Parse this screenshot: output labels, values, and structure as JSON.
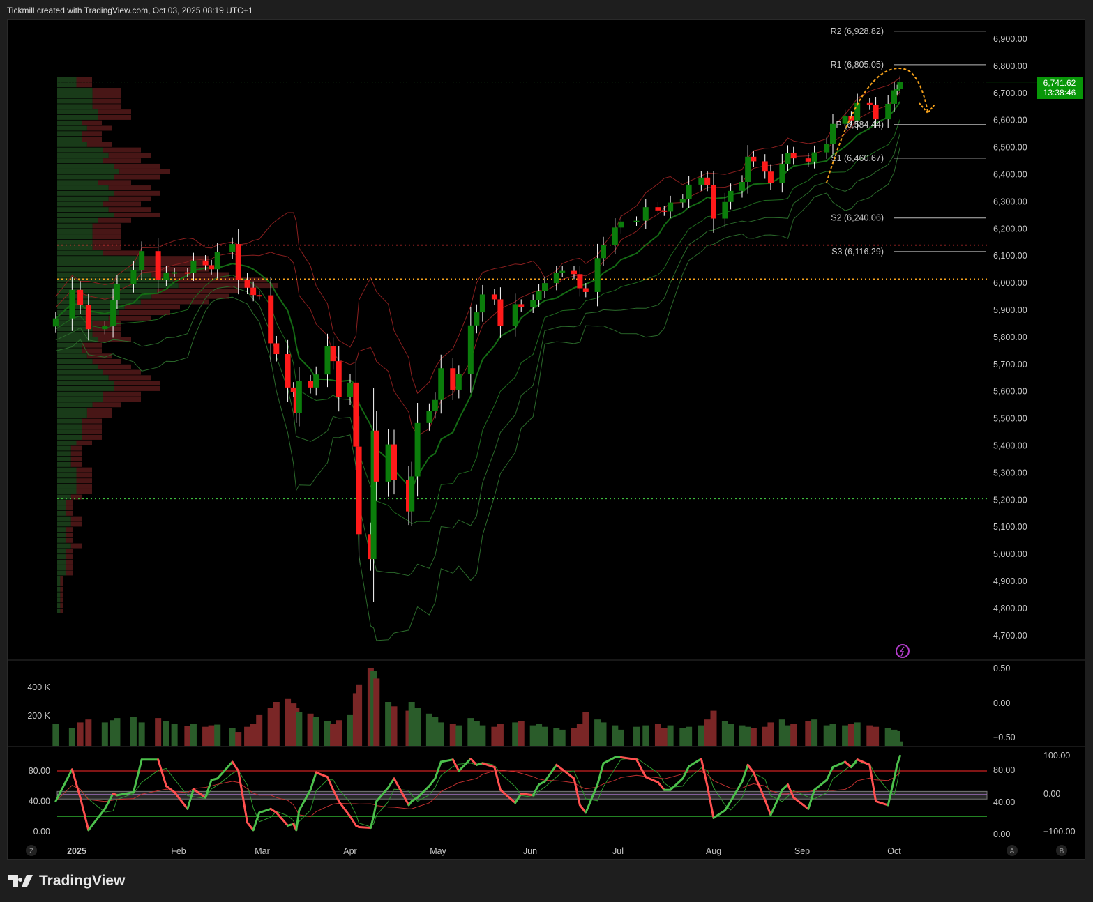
{
  "header": {
    "title": "Tickmill created with TradingView.com, Oct 03, 2025 08:19 UTC+1"
  },
  "footer": {
    "brand": "TradingView"
  },
  "price_label": {
    "value": "6,741.62",
    "countdown": "13:38:46",
    "color": "#089708"
  },
  "colors": {
    "up": "#0b7d0b",
    "down": "#ff1a1a",
    "vol_up": "#2a5c2a",
    "vol_down": "#7a2626",
    "pivot_arrow": "#f7a21b"
  },
  "buttons": {
    "z": "Z",
    "a": "A",
    "b": "B"
  },
  "chart_data": {
    "type": "candlestick",
    "price_axis": {
      "ticks": [
        "6,900.00",
        "6,800.00",
        "6,700.00",
        "6,600.00",
        "6,500.00",
        "6,400.00",
        "6,300.00",
        "6,200.00",
        "6,100.00",
        "6,000.00",
        "5,900.00",
        "5,800.00",
        "5,700.00",
        "5,600.00",
        "5,500.00",
        "5,400.00",
        "5,300.00",
        "5,200.00",
        "5,100.00",
        "5,000.00",
        "4,900.00",
        "4,800.00",
        "4,700.00"
      ],
      "range": [
        4650,
        6960
      ]
    },
    "time_axis": [
      "2025",
      "Feb",
      "Mar",
      "Apr",
      "May",
      "Jun",
      "Jul",
      "Aug",
      "Sep",
      "Oct"
    ],
    "pivots": [
      {
        "label": "R2 (6,928.82)",
        "value": 6928.82
      },
      {
        "label": "R1 (6,805.05)",
        "value": 6805.05
      },
      {
        "label": "P (6,584.44)",
        "value": 6584.44
      },
      {
        "label": "S1 (6,460.67)",
        "value": 6460.67
      },
      {
        "label": "S2 (6,240.06)",
        "value": 6240.06
      },
      {
        "label": "S3 (6,116.29)",
        "value": 6116.29
      }
    ],
    "levels": [
      {
        "value": 6140,
        "color": "#ff3b3b"
      },
      {
        "value": 6015,
        "color": "#f7a21b"
      },
      {
        "value": 5205,
        "color": "#3dbb3d"
      },
      {
        "value": 6395,
        "color": "#d050d0"
      }
    ],
    "volume_axis": {
      "left": [
        "400 K",
        "200 K"
      ],
      "right": [
        "0.50",
        "0.00",
        "−0.50"
      ]
    },
    "osc_axis": {
      "left": [
        "80.00",
        "40.00",
        "0.00"
      ],
      "right": [
        "100.00",
        "80.00",
        "0.00",
        "40.00",
        "−100.00",
        "0.00"
      ]
    },
    "points": [
      [
        "2025-01-02",
        5870,
        150,
        40
      ],
      [
        "2025-01-06",
        5975,
        120,
        82
      ],
      [
        "2025-01-08",
        5918,
        160,
        45
      ],
      [
        "2025-01-10",
        5830,
        180,
        2
      ],
      [
        "2025-01-14",
        5842,
        160,
        30
      ],
      [
        "2025-01-16",
        5937,
        175,
        50
      ],
      [
        "2025-01-17",
        5996,
        190,
        48
      ],
      [
        "2025-01-21",
        6049,
        200,
        52
      ],
      [
        "2025-01-23",
        6118,
        160,
        95
      ],
      [
        "2025-01-27",
        6012,
        190,
        95
      ],
      [
        "2025-01-29",
        6039,
        170,
        60
      ],
      [
        "2025-01-31",
        6040,
        150,
        52
      ],
      [
        "2025-02-04",
        6037,
        135,
        30
      ],
      [
        "2025-02-06",
        6083,
        150,
        56
      ],
      [
        "2025-02-10",
        6066,
        130,
        45
      ],
      [
        "2025-02-12",
        6051,
        140,
        68
      ],
      [
        "2025-02-14",
        6114,
        145,
        70
      ],
      [
        "2025-02-19",
        6144,
        120,
        92
      ],
      [
        "2025-02-21",
        6013,
        95,
        80
      ],
      [
        "2025-02-24",
        5983,
        130,
        12
      ],
      [
        "2025-02-26",
        5956,
        150,
        2
      ],
      [
        "2025-02-28",
        5955,
        210,
        25
      ],
      [
        "2025-03-04",
        5778,
        260,
        30
      ],
      [
        "2025-03-06",
        5738,
        300,
        25
      ],
      [
        "2025-03-10",
        5615,
        320,
        8
      ],
      [
        "2025-03-12",
        5599,
        290,
        10
      ],
      [
        "2025-03-13",
        5522,
        260,
        2
      ],
      [
        "2025-03-14",
        5639,
        230,
        28
      ],
      [
        "2025-03-18",
        5615,
        220,
        55
      ],
      [
        "2025-03-20",
        5663,
        200,
        78
      ],
      [
        "2025-03-24",
        5767,
        170,
        72
      ],
      [
        "2025-03-26",
        5712,
        150,
        55
      ],
      [
        "2025-03-28",
        5581,
        175,
        40
      ],
      [
        "2025-04-01",
        5633,
        210,
        20
      ],
      [
        "2025-04-03",
        5397,
        360,
        8
      ],
      [
        "2025-04-04",
        5074,
        420,
        6
      ],
      [
        "2025-04-08",
        4982,
        530,
        5
      ],
      [
        "2025-04-09",
        5456,
        510,
        20
      ],
      [
        "2025-04-10",
        5268,
        460,
        40
      ],
      [
        "2025-04-14",
        5405,
        300,
        58
      ],
      [
        "2025-04-16",
        5275,
        270,
        70
      ],
      [
        "2025-04-21",
        5158,
        240,
        35
      ],
      [
        "2025-04-22",
        5287,
        300,
        40
      ],
      [
        "2025-04-24",
        5484,
        260,
        45
      ],
      [
        "2025-04-28",
        5528,
        220,
        60
      ],
      [
        "2025-04-30",
        5569,
        200,
        70
      ],
      [
        "2025-05-02",
        5686,
        160,
        92
      ],
      [
        "2025-05-06",
        5607,
        150,
        95
      ],
      [
        "2025-05-08",
        5664,
        140,
        80
      ],
      [
        "2025-05-12",
        5844,
        190,
        96
      ],
      [
        "2025-05-14",
        5892,
        170,
        88
      ],
      [
        "2025-05-16",
        5958,
        140,
        90
      ],
      [
        "2025-05-20",
        5940,
        130,
        85
      ],
      [
        "2025-05-22",
        5842,
        150,
        55
      ],
      [
        "2025-05-27",
        5922,
        160,
        38
      ],
      [
        "2025-05-29",
        5912,
        170,
        50
      ],
      [
        "2025-06-02",
        5936,
        140,
        48
      ],
      [
        "2025-06-04",
        5970,
        150,
        62
      ],
      [
        "2025-06-06",
        6000,
        130,
        66
      ],
      [
        "2025-06-10",
        6038,
        120,
        88
      ],
      [
        "2025-06-12",
        6045,
        110,
        82
      ],
      [
        "2025-06-16",
        6033,
        120,
        70
      ],
      [
        "2025-06-18",
        5981,
        150,
        35
      ],
      [
        "2025-06-20",
        5967,
        230,
        25
      ],
      [
        "2025-06-24",
        6092,
        180,
        62
      ],
      [
        "2025-06-26",
        6141,
        160,
        90
      ],
      [
        "2025-06-30",
        6205,
        140,
        98
      ],
      [
        "2025-07-02",
        6227,
        110,
        98
      ],
      [
        "2025-07-07",
        6230,
        130,
        95
      ],
      [
        "2025-07-10",
        6280,
        140,
        72
      ],
      [
        "2025-07-14",
        6268,
        150,
        65
      ],
      [
        "2025-07-16",
        6264,
        120,
        55
      ],
      [
        "2025-07-18",
        6297,
        140,
        55
      ],
      [
        "2025-07-22",
        6309,
        120,
        70
      ],
      [
        "2025-07-24",
        6363,
        130,
        86
      ],
      [
        "2025-07-28",
        6389,
        140,
        96
      ],
      [
        "2025-07-30",
        6362,
        180,
        60
      ],
      [
        "2025-08-01",
        6238,
        240,
        18
      ],
      [
        "2025-08-05",
        6299,
        170,
        28
      ],
      [
        "2025-08-07",
        6340,
        150,
        40
      ],
      [
        "2025-08-11",
        6373,
        140,
        66
      ],
      [
        "2025-08-13",
        6466,
        130,
        88
      ],
      [
        "2025-08-15",
        6449,
        120,
        78
      ],
      [
        "2025-08-19",
        6411,
        130,
        42
      ],
      [
        "2025-08-21",
        6370,
        160,
        22
      ],
      [
        "2025-08-25",
        6440,
        180,
        55
      ],
      [
        "2025-08-27",
        6481,
        140,
        62
      ],
      [
        "2025-08-29",
        6460,
        150,
        45
      ],
      [
        "2025-09-03",
        6448,
        170,
        30
      ],
      [
        "2025-09-05",
        6482,
        180,
        55
      ],
      [
        "2025-09-09",
        6512,
        140,
        68
      ],
      [
        "2025-09-11",
        6587,
        150,
        85
      ],
      [
        "2025-09-15",
        6615,
        140,
        92
      ],
      [
        "2025-09-17",
        6600,
        150,
        85
      ],
      [
        "2025-09-19",
        6664,
        160,
        95
      ],
      [
        "2025-09-23",
        6656,
        140,
        88
      ],
      [
        "2025-09-25",
        6604,
        130,
        40
      ],
      [
        "2025-09-29",
        6661,
        120,
        35
      ],
      [
        "2025-10-01",
        6711,
        110,
        70
      ],
      [
        "2025-10-02",
        6715,
        100,
        88
      ],
      [
        "2025-10-03",
        6741.62,
        30,
        100
      ]
    ]
  }
}
